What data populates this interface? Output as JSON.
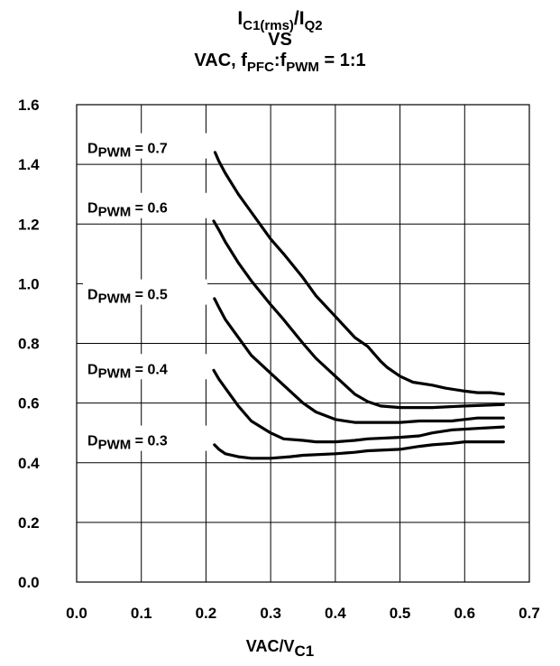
{
  "title": {
    "line1_main1": "I",
    "line1_sub1": "C1(rms)",
    "line1_main2": "/I",
    "line1_sub2": "Q2",
    "line2": "VS",
    "line3_prefix": "VAC, f",
    "line3_sub1": "PFC",
    "line3_mid": ":f",
    "line3_sub2": "PWM",
    "line3_suffix": " = 1:1"
  },
  "xlabel": {
    "main": "VAC/V",
    "sub": "C1"
  },
  "chart_data": {
    "type": "line",
    "xlim": [
      0.0,
      0.7
    ],
    "ylim": [
      0.0,
      1.6
    ],
    "xticks": [
      "0.0",
      "0.1",
      "0.2",
      "0.3",
      "0.4",
      "0.5",
      "0.6",
      "0.7"
    ],
    "yticks": [
      "0.0",
      "0.2",
      "0.4",
      "0.6",
      "0.8",
      "1.0",
      "1.2",
      "1.4",
      "1.6"
    ],
    "grid": true,
    "series": [
      {
        "name": "D = 0.7",
        "label_main": "D",
        "label_sub": "PWM",
        "label_value": " = 0.7",
        "label_y": 1.45,
        "points": [
          [
            0.214,
            1.44
          ],
          [
            0.22,
            1.41
          ],
          [
            0.23,
            1.37
          ],
          [
            0.25,
            1.3
          ],
          [
            0.27,
            1.24
          ],
          [
            0.3,
            1.15
          ],
          [
            0.32,
            1.1
          ],
          [
            0.35,
            1.02
          ],
          [
            0.37,
            0.96
          ],
          [
            0.4,
            0.89
          ],
          [
            0.43,
            0.82
          ],
          [
            0.45,
            0.79
          ],
          [
            0.47,
            0.74
          ],
          [
            0.48,
            0.72
          ],
          [
            0.5,
            0.69
          ],
          [
            0.52,
            0.67
          ],
          [
            0.55,
            0.66
          ],
          [
            0.57,
            0.65
          ],
          [
            0.6,
            0.64
          ],
          [
            0.62,
            0.635
          ],
          [
            0.64,
            0.635
          ],
          [
            0.66,
            0.63
          ]
        ]
      },
      {
        "name": "D = 0.6",
        "label_main": "D",
        "label_sub": "PWM",
        "label_value": " = 0.6",
        "label_y": 1.25,
        "points": [
          [
            0.212,
            1.21
          ],
          [
            0.22,
            1.18
          ],
          [
            0.23,
            1.14
          ],
          [
            0.25,
            1.07
          ],
          [
            0.27,
            1.01
          ],
          [
            0.3,
            0.93
          ],
          [
            0.32,
            0.88
          ],
          [
            0.35,
            0.8
          ],
          [
            0.37,
            0.75
          ],
          [
            0.4,
            0.69
          ],
          [
            0.43,
            0.63
          ],
          [
            0.45,
            0.605
          ],
          [
            0.47,
            0.59
          ],
          [
            0.5,
            0.585
          ],
          [
            0.55,
            0.585
          ],
          [
            0.6,
            0.59
          ],
          [
            0.66,
            0.595
          ]
        ]
      },
      {
        "name": "D = 0.5",
        "label_main": "D",
        "label_sub": "PWM",
        "label_value": " = 0.5",
        "label_y": 0.96,
        "points": [
          [
            0.213,
            0.95
          ],
          [
            0.22,
            0.92
          ],
          [
            0.23,
            0.88
          ],
          [
            0.25,
            0.82
          ],
          [
            0.27,
            0.76
          ],
          [
            0.3,
            0.7
          ],
          [
            0.32,
            0.66
          ],
          [
            0.35,
            0.6
          ],
          [
            0.37,
            0.57
          ],
          [
            0.4,
            0.545
          ],
          [
            0.43,
            0.535
          ],
          [
            0.45,
            0.535
          ],
          [
            0.5,
            0.535
          ],
          [
            0.53,
            0.54
          ],
          [
            0.58,
            0.54
          ],
          [
            0.6,
            0.545
          ],
          [
            0.62,
            0.55
          ],
          [
            0.66,
            0.55
          ]
        ]
      },
      {
        "name": "D = 0.4",
        "label_main": "D",
        "label_sub": "PWM",
        "label_value": " = 0.4",
        "label_y": 0.71,
        "points": [
          [
            0.212,
            0.71
          ],
          [
            0.22,
            0.68
          ],
          [
            0.23,
            0.65
          ],
          [
            0.25,
            0.59
          ],
          [
            0.27,
            0.54
          ],
          [
            0.3,
            0.5
          ],
          [
            0.32,
            0.48
          ],
          [
            0.35,
            0.475
          ],
          [
            0.37,
            0.47
          ],
          [
            0.4,
            0.47
          ],
          [
            0.43,
            0.475
          ],
          [
            0.45,
            0.48
          ],
          [
            0.5,
            0.485
          ],
          [
            0.53,
            0.49
          ],
          [
            0.55,
            0.5
          ],
          [
            0.58,
            0.51
          ],
          [
            0.62,
            0.515
          ],
          [
            0.66,
            0.52
          ]
        ]
      },
      {
        "name": "D = 0.3",
        "label_main": "D",
        "label_sub": "PWM",
        "label_value": " = 0.3",
        "label_y": 0.47,
        "points": [
          [
            0.213,
            0.46
          ],
          [
            0.22,
            0.445
          ],
          [
            0.23,
            0.43
          ],
          [
            0.25,
            0.42
          ],
          [
            0.27,
            0.415
          ],
          [
            0.3,
            0.415
          ],
          [
            0.33,
            0.42
          ],
          [
            0.35,
            0.425
          ],
          [
            0.4,
            0.43
          ],
          [
            0.43,
            0.435
          ],
          [
            0.45,
            0.44
          ],
          [
            0.5,
            0.445
          ],
          [
            0.53,
            0.455
          ],
          [
            0.55,
            0.46
          ],
          [
            0.58,
            0.465
          ],
          [
            0.6,
            0.47
          ],
          [
            0.62,
            0.47
          ],
          [
            0.66,
            0.47
          ]
        ]
      }
    ]
  },
  "colors": {
    "line": "#000000",
    "grid": "#000000",
    "background": "#ffffff"
  }
}
